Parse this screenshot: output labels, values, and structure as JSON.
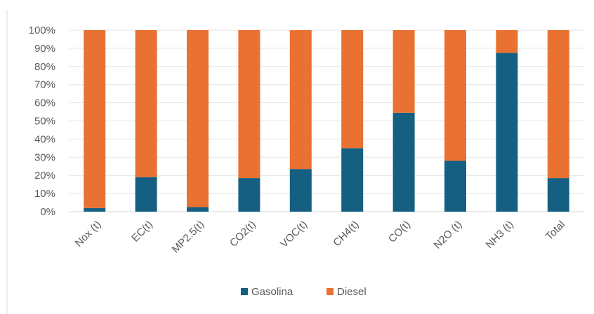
{
  "chart_data": {
    "type": "bar",
    "stacked": true,
    "percent": true,
    "categories": [
      "Nox (t)",
      "EC(t)",
      "MP2.5(t)",
      "CO2(t)",
      "VOC(t)",
      "CH4(t)",
      "CO(t)",
      "N2O (t)",
      "NH3 (t)",
      "Total"
    ],
    "series": [
      {
        "name": "Gasolina",
        "color": "#156082",
        "values": [
          2,
          19,
          2.5,
          18.5,
          23.5,
          35,
          54.5,
          28,
          87.5,
          18.5
        ]
      },
      {
        "name": "Diesel",
        "color": "#E97132",
        "values": [
          98,
          81,
          97.5,
          81.5,
          76.5,
          65,
          45.5,
          72,
          12.5,
          81.5
        ]
      }
    ],
    "y_ticks": [
      "0%",
      "10%",
      "20%",
      "30%",
      "40%",
      "50%",
      "60%",
      "70%",
      "80%",
      "90%",
      "100%"
    ],
    "ylim": [
      0,
      100
    ],
    "grid": true,
    "legend": "bottom",
    "title": "",
    "xlabel": "",
    "ylabel": ""
  }
}
